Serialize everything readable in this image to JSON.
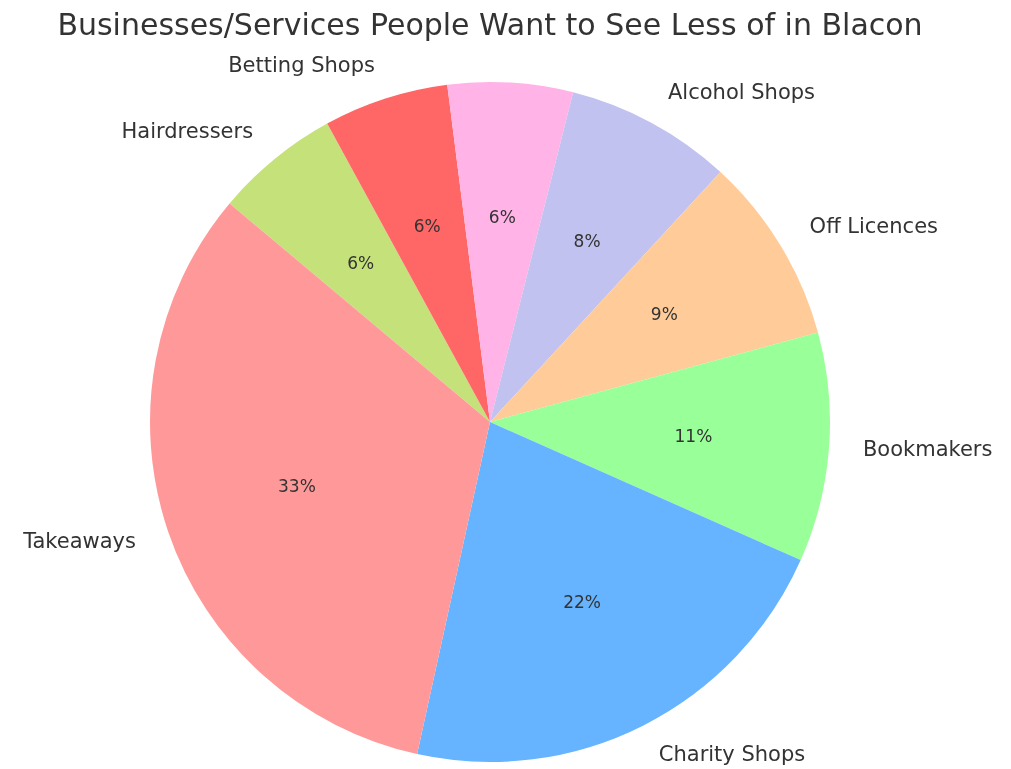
{
  "chart_data": {
    "type": "pie",
    "title": "Businesses/Services People Want to See Less of in Blacon",
    "categories": [
      "Hairdressers",
      "Betting Shops",
      null,
      "Alcohol Shops",
      "Off Licences",
      "Bookmakers",
      "Charity Shops",
      "Takeaways"
    ],
    "values": [
      6,
      6,
      6,
      8,
      9,
      11,
      22,
      33
    ],
    "value_labels": [
      "6%",
      "6%",
      "6%",
      "8%",
      "9%",
      "11%",
      "22%",
      "33%"
    ],
    "colors": [
      "#c5e17a",
      "#ff6666",
      "#ffb3e6",
      "#c2c2f0",
      "#ffcc99",
      "#99ff99",
      "#66b3ff",
      "#ff9999"
    ],
    "legend": false
  }
}
